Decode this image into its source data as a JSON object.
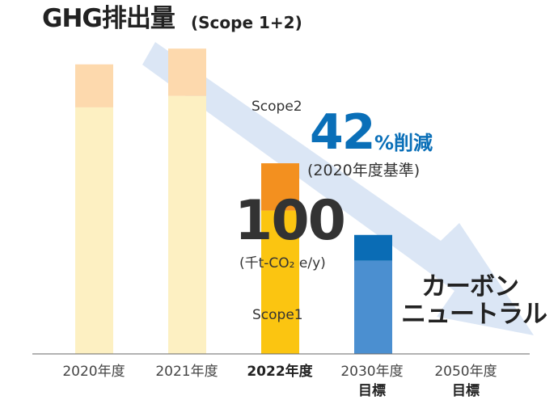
{
  "title": "GHG排出量",
  "subtitle": "(Scope 1+2)",
  "reduction": {
    "value": "42",
    "unit": "%削減",
    "basis": "(2020年度基準)"
  },
  "highlight": {
    "value": "100",
    "unit": "(千t-CO₂ e/y)"
  },
  "neutral_line1": "カーボン",
  "neutral_line2": "ニュートラル",
  "chart_data": {
    "type": "bar",
    "stacked": true,
    "categories": [
      "2020年度",
      "2021年度",
      "2022年度",
      "2030年度",
      "2050年度"
    ],
    "category_sublabels": [
      "",
      "",
      "",
      "目標",
      "目標"
    ],
    "highlight_category": "2022年度",
    "series": [
      {
        "name": "Scope1",
        "values": [
          172,
          180,
          100,
          65,
          0
        ]
      },
      {
        "name": "Scope2",
        "values": [
          30,
          33,
          33,
          18,
          0
        ]
      }
    ],
    "ylim": [
      0,
      230
    ],
    "gridlines": false,
    "legend": "inline labels on 2022 bar",
    "colors": {
      "past_scope1": "#fdf0c2",
      "past_scope2": "#fdd9ad",
      "current_scope1": "#fbc511",
      "current_scope2": "#f3901f",
      "target_scope1": "#4b8fd0",
      "target_scope2": "#0a6cb5",
      "trend_arrow": "#dbe6f5"
    },
    "trend_arrow": "decreasing from 2020年度 toward 2050年度"
  }
}
